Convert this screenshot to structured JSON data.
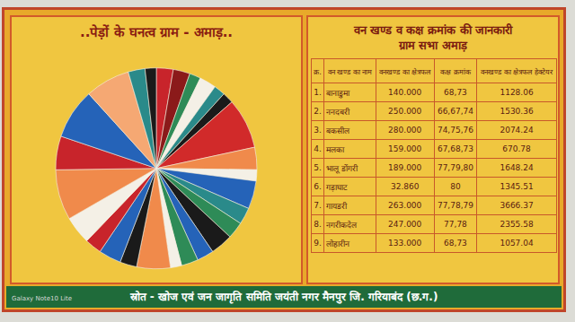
{
  "chart_data": {
    "type": "pie",
    "title": "..पेड़ों के घनत्व ग्राम - अमाड़..",
    "values": [
      3,
      3,
      2,
      3,
      2,
      2,
      9,
      4,
      2,
      5,
      3,
      3,
      4,
      3,
      3,
      2,
      6,
      3,
      4,
      3,
      5,
      9,
      6,
      9,
      8,
      3,
      2
    ],
    "colors": [
      "#c8242b",
      "#8b1a1a",
      "#2e8b57",
      "#f4f0e6",
      "#2a8a8a",
      "#1a1a1a",
      "#d12a2a",
      "#f08a4b",
      "#f4f0e6",
      "#2563b8",
      "#2a8a8a",
      "#2e8b57",
      "#1a1a1a",
      "#2563b8",
      "#2e8b57",
      "#f4f0e6",
      "#f08a4b",
      "#1a1a1a",
      "#2563b8",
      "#c8242b",
      "#f4f0e6",
      "#f08a4b",
      "#c8242b",
      "#2563b8",
      "#f5a873",
      "#2a8a8a",
      "#1a1a1a"
    ]
  },
  "table": {
    "title": [
      "वन खण्ड व कक्ष क्रमांक की जानकारी",
      "ग्राम सभा अमाड़"
    ],
    "columns": [
      "क्र.",
      "वन खण्ड का नाम",
      "वनखण्ड का क्षेत्रफल",
      "कक्ष क्रमांक",
      "वनखण्ड का क्षेत्रफल हेक्टेयर"
    ],
    "rows": [
      [
        "1.",
        "बानाडुमा",
        "140.000",
        "68,73",
        "1128.06"
      ],
      [
        "2.",
        "ननदबरी",
        "250.000",
        "66,67,74",
        "1530.36"
      ],
      [
        "3.",
        "बकसील",
        "280.000",
        "74,75,76",
        "2074.24"
      ],
      [
        "4.",
        "मलका",
        "159.000",
        "67,68,73",
        "670.78"
      ],
      [
        "5.",
        "भालू डोंगरी",
        "189.000",
        "77,79,80",
        "1648.24"
      ],
      [
        "6.",
        "गड़ाघाट",
        "32.860",
        "80",
        "1345.51"
      ],
      [
        "7.",
        "गायडरी",
        "263.000",
        "77,78,79",
        "3666.37"
      ],
      [
        "8.",
        "नगरीकदेल",
        "247.000",
        "77,78",
        "2355.58"
      ],
      [
        "9.",
        "लोहारीन",
        "133.000",
        "68,73",
        "1057.04"
      ]
    ]
  },
  "footer": "स्रोत - खोज एवं जन जागृति समिति जयंती नगर मैनपुर जि. गरियाबंद (छ.ग.)",
  "watermark": "Galaxy Note10 Lite"
}
